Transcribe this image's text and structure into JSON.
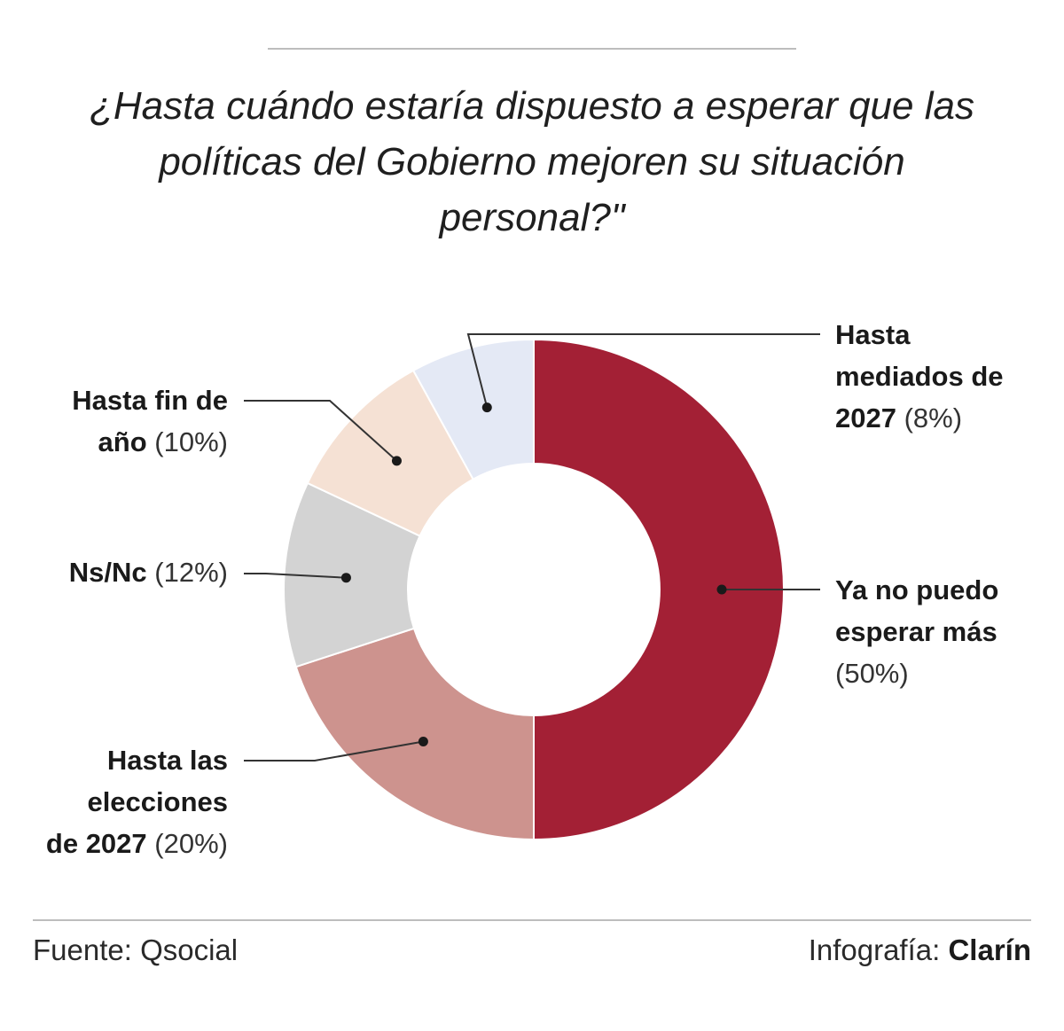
{
  "title_lines": [
    "¿Hasta cuándo estaría dispuesto a esperar que las",
    "políticas del Gobierno mejoren su situación",
    "personal?\""
  ],
  "chart_data": {
    "type": "pie",
    "donut": true,
    "slices": [
      {
        "label_lines": [
          "Ya no puedo",
          "esperar más"
        ],
        "value_text": "(50%)",
        "value": 50,
        "color": "#a32035"
      },
      {
        "label_lines": [
          "Hasta las",
          "elecciones",
          "de 2027"
        ],
        "value_text": "(20%)",
        "value": 20,
        "color": "#cd938e"
      },
      {
        "label_lines": [
          "Ns/Nc"
        ],
        "value_text": "(12%)",
        "value": 12,
        "color": "#d3d3d3"
      },
      {
        "label_lines": [
          "Hasta fin de",
          "año"
        ],
        "value_text": "(10%)",
        "value": 10,
        "color": "#f5e1d4"
      },
      {
        "label_lines": [
          "Hasta",
          "mediados de",
          "2027"
        ],
        "value_text": "(8%)",
        "value": 8,
        "color": "#e4e9f5"
      }
    ]
  },
  "footer": {
    "source": "Fuente: Qsocial",
    "credit_prefix": "Infografía:",
    "credit_brand": "Clarín"
  }
}
